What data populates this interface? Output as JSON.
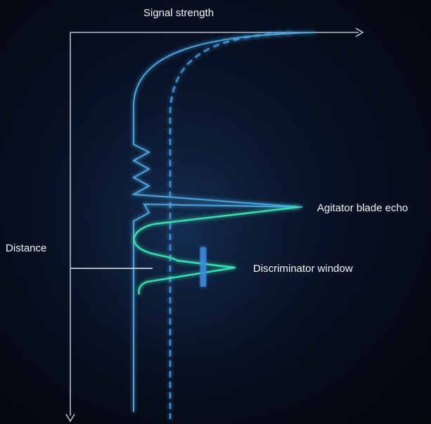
{
  "x_axis_label": "Signal strength",
  "y_axis_label": "Distance",
  "callouts": {
    "agitator_echo": "Agitator blade echo",
    "discriminator_window": "Discriminator window"
  },
  "colors": {
    "background": "#060b16",
    "axis": "#b9bfcc",
    "echo_curve": "#4aa6e0",
    "processed_curve": "#38e0b0",
    "reference_dashed": "#3f8fd0",
    "window_marker": "#3a8fe0",
    "distance_marker": "#c9ced6"
  },
  "legend": []
}
